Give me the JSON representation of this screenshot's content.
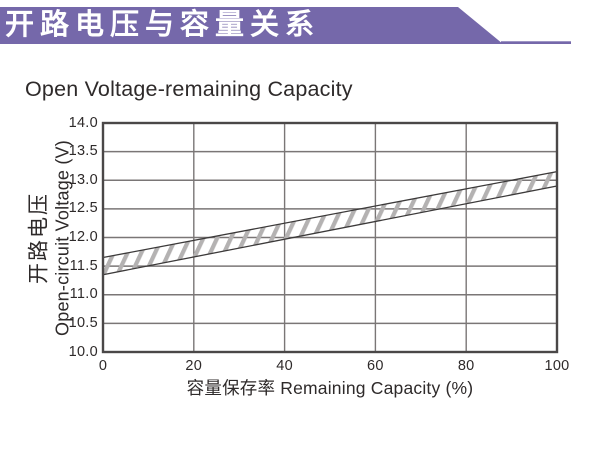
{
  "header": {
    "title": "开路电压与容量关系"
  },
  "chart_data": {
    "type": "band",
    "title": "Open Voltage-remaining Capacity",
    "xlabel": "容量保存率 Remaining Capacity (%)",
    "ylabel_cn": "开路电压",
    "ylabel_en": "Open-circuit Voltage (V)",
    "xlim": [
      0,
      100
    ],
    "ylim": [
      10.0,
      14.0
    ],
    "grid": true,
    "x_ticks": [
      {
        "value": 0,
        "label": "0"
      },
      {
        "value": 20,
        "label": "20"
      },
      {
        "value": 40,
        "label": "40"
      },
      {
        "value": 60,
        "label": "60"
      },
      {
        "value": 80,
        "label": "80"
      },
      {
        "value": 100,
        "label": "100"
      }
    ],
    "y_ticks": [
      {
        "value": 14.0,
        "label": "14.0"
      },
      {
        "value": 13.5,
        "label": "13.5"
      },
      {
        "value": 13.0,
        "label": "13.0"
      },
      {
        "value": 12.5,
        "label": "12.5"
      },
      {
        "value": 12.0,
        "label": "12.0"
      },
      {
        "value": 11.5,
        "label": "11.5"
      },
      {
        "value": 11.0,
        "label": "11.0"
      },
      {
        "value": 10.5,
        "label": "10.5"
      },
      {
        "value": 10.0,
        "label": "10.0"
      }
    ],
    "band": {
      "description": "hatched band of open-circuit voltage vs remaining capacity",
      "x": [
        0,
        100
      ],
      "upper": [
        11.65,
        13.15
      ],
      "lower": [
        11.35,
        12.9
      ]
    }
  },
  "colors": {
    "banner_purple": "#7568aa",
    "banner_text": "#ffffff",
    "title_text": "#2e2a2a",
    "frame": "#4a4747",
    "grid": "#7a7676",
    "band_edge": "#3c3a3a",
    "hatch": "#b4b2b2",
    "background": "#ffffff"
  }
}
